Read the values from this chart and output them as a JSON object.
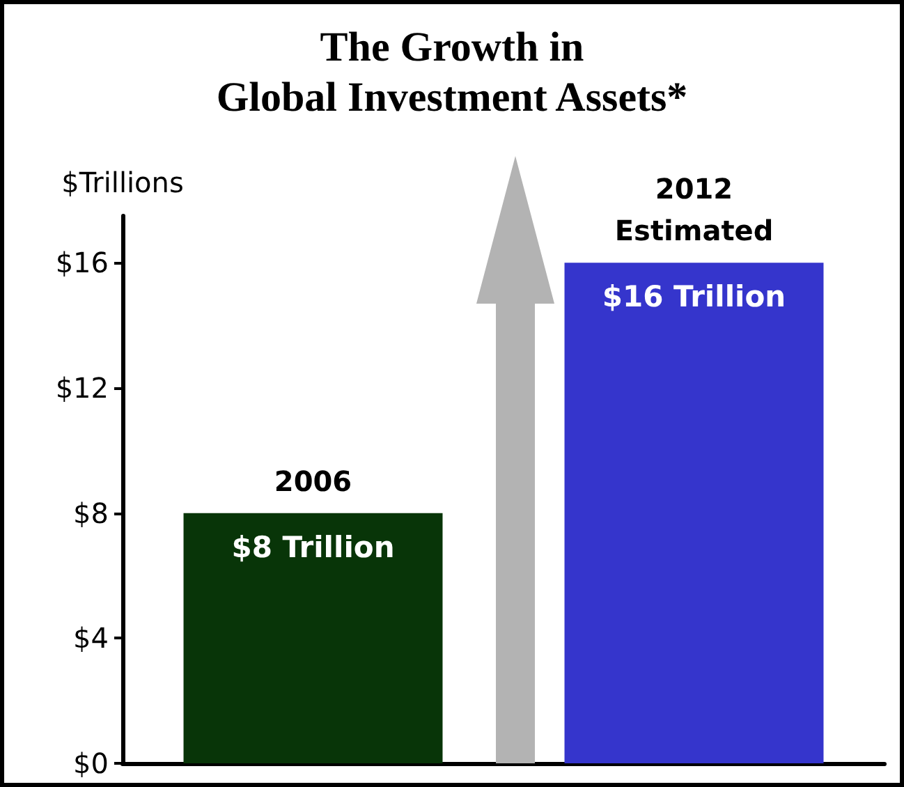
{
  "chart_data": {
    "type": "bar",
    "title": "The Growth in\nGlobal Investment Assets*",
    "ylabel": "$Trillions",
    "categories": [
      "2006",
      "2012\nEstimated"
    ],
    "values": [
      8,
      16
    ],
    "colors": [
      "#083508",
      "#3535cc"
    ],
    "value_labels": [
      "$8 Trillion",
      "$16 Trillion"
    ],
    "ylim": [
      0,
      17.5
    ],
    "yticks": [
      {
        "value": 0,
        "label": "$0"
      },
      {
        "value": 4,
        "label": "$4"
      },
      {
        "value": 8,
        "label": "$8"
      },
      {
        "value": 12,
        "label": "$12"
      },
      {
        "value": 16,
        "label": "$16"
      }
    ],
    "data_labels": false
  }
}
